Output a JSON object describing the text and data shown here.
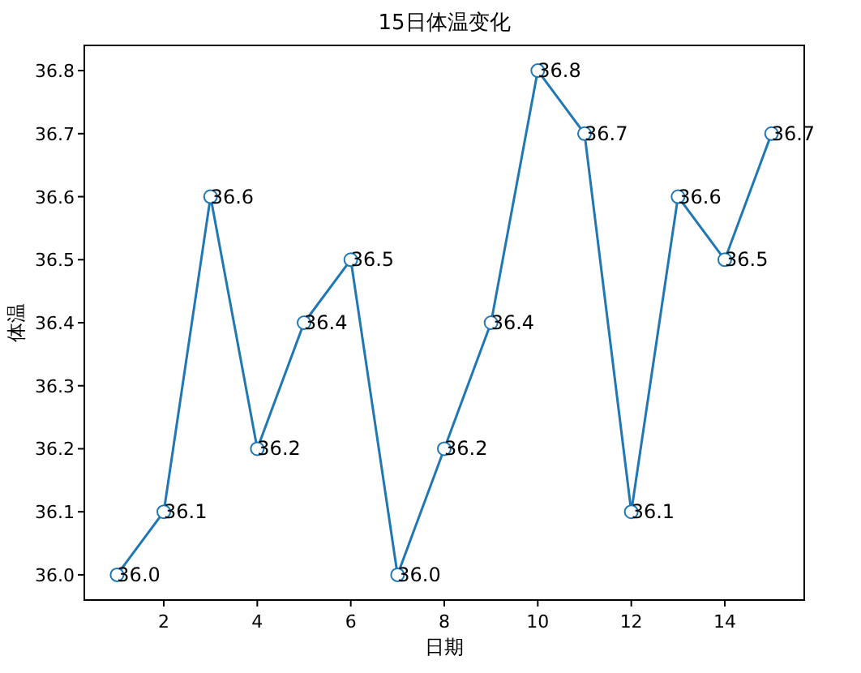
{
  "chart_data": {
    "type": "line",
    "title": "15日体温变化",
    "xlabel": "日期",
    "ylabel": "体温",
    "x": [
      1,
      2,
      3,
      4,
      5,
      6,
      7,
      8,
      9,
      10,
      11,
      12,
      13,
      14,
      15
    ],
    "series": [
      {
        "color": "#1f77b4",
        "values": [
          36.0,
          36.1,
          36.6,
          36.2,
          36.4,
          36.5,
          36.0,
          36.2,
          36.4,
          36.8,
          36.7,
          36.1,
          36.6,
          36.5,
          36.7
        ],
        "value_labels": [
          "36.0",
          "36.1",
          "36.6",
          "36.2",
          "36.4",
          "36.5",
          "36.0",
          "36.2",
          "36.4",
          "36.8",
          "36.7",
          "36.1",
          "36.6",
          "36.5",
          "36.7"
        ]
      }
    ],
    "xlim": [
      0.3,
      15.7
    ],
    "xticks": [
      2,
      4,
      6,
      8,
      10,
      12,
      14
    ],
    "ylim": [
      35.96,
      36.84
    ],
    "yticks": [
      {
        "value": 36.0,
        "label": "36.0"
      },
      36.1,
      36.2,
      36.3,
      36.4,
      36.5,
      36.6,
      36.7,
      36.8
    ],
    "marker": "circle",
    "line_style": "solid"
  }
}
